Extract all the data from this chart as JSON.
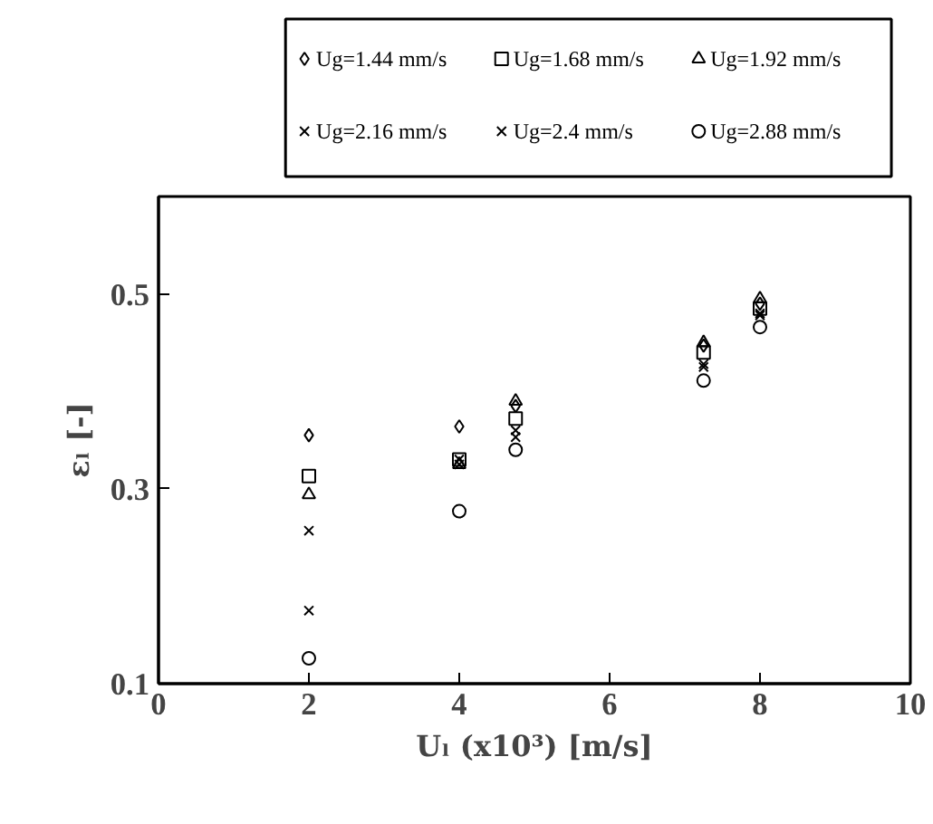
{
  "chart_data": {
    "type": "scatter",
    "xlabel": "Uₗ (x10³) [m/s]",
    "ylabel": "εₗ [-]",
    "x": [
      2,
      4,
      4.75,
      7.25,
      8
    ],
    "series": [
      {
        "name": "Ug=1.44 mm/s",
        "color": "#000000",
        "marker": "diamond",
        "values": [
          0.355,
          0.364,
          0.385,
          0.447,
          0.49
        ]
      },
      {
        "name": "Ug=1.68 mm/s",
        "color": "#000000",
        "marker": "square",
        "values": [
          0.313,
          0.33,
          0.372,
          0.44,
          0.485
        ]
      },
      {
        "name": "Ug=1.92 mm/s",
        "color": "#000000",
        "marker": "triangle",
        "values": [
          0.294,
          0.325,
          0.39,
          0.45,
          0.495
        ]
      },
      {
        "name": "Ug=2.16 mm/s",
        "color": "#000000",
        "marker": "cross",
        "values": [
          0.257,
          0.33,
          0.36,
          0.428,
          0.48
        ]
      },
      {
        "name": "Ug=2.4 mm/s",
        "color": "#000000",
        "marker": "cross",
        "values": [
          0.175,
          0.325,
          0.353,
          0.425,
          0.478
        ]
      },
      {
        "name": "Ug=2.88 mm/s",
        "color": "#000000",
        "marker": "circle",
        "values": [
          0.126,
          0.277,
          0.34,
          0.411,
          0.466
        ]
      }
    ],
    "xlim": [
      0,
      10
    ],
    "xticks": [
      0,
      2,
      4,
      6,
      8,
      10
    ],
    "ylim": [
      0.1,
      0.6
    ],
    "yticks": [
      0.1,
      0.3,
      0.5
    ],
    "grid": false,
    "legend": "top"
  }
}
